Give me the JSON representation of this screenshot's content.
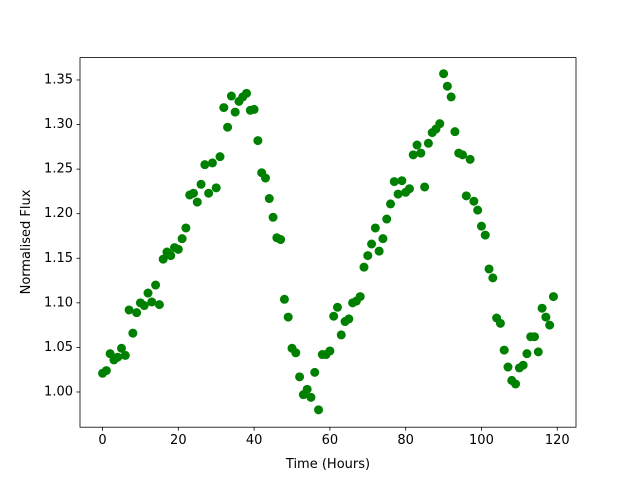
{
  "chart_data": {
    "type": "scatter",
    "xlabel": "Time (Hours)",
    "ylabel": "Normalised Flux",
    "xlim": [
      -5.95,
      124.95
    ],
    "ylim": [
      0.9605,
      1.3751
    ],
    "xticks": [
      0,
      20,
      40,
      60,
      80,
      100,
      120
    ],
    "yticks": [
      {
        "value": 1.0,
        "label": "1.00"
      },
      {
        "value": 1.05,
        "label": "1.05"
      },
      {
        "value": 1.1,
        "label": "1.10"
      },
      {
        "value": 1.15,
        "label": "1.15"
      },
      {
        "value": 1.2,
        "label": "1.20"
      },
      {
        "value": 1.25,
        "label": "1.25"
      },
      {
        "value": 1.3,
        "label": "1.30"
      },
      {
        "value": 1.35,
        "label": "1.35"
      }
    ],
    "grid": false,
    "color": "#008000",
    "x": [
      0,
      1,
      2,
      3,
      4,
      5,
      6,
      7,
      8,
      9,
      10,
      11,
      12,
      13,
      14,
      15,
      16,
      17,
      18,
      19,
      20,
      21,
      22,
      23,
      24,
      25,
      26,
      27,
      28,
      29,
      30,
      31,
      32,
      33,
      34,
      35,
      36,
      37,
      38,
      39,
      40,
      41,
      42,
      43,
      44,
      45,
      46,
      47,
      48,
      49,
      50,
      51,
      52,
      53,
      54,
      55,
      56,
      57,
      58,
      59,
      60,
      61,
      62,
      63,
      64,
      65,
      66,
      67,
      68,
      69,
      70,
      71,
      72,
      73,
      74,
      75,
      76,
      77,
      78,
      79,
      80,
      81,
      82,
      83,
      84,
      85,
      86,
      87,
      88,
      89,
      90,
      91,
      92,
      93,
      94,
      95,
      96,
      97,
      98,
      99,
      100,
      101,
      102,
      103,
      104,
      105,
      106,
      107,
      108,
      109,
      110,
      111,
      112,
      113,
      114,
      115,
      116,
      117,
      118,
      119
    ],
    "values": [
      1.021,
      1.024,
      1.043,
      1.036,
      1.039,
      1.049,
      1.041,
      1.092,
      1.066,
      1.089,
      1.1,
      1.097,
      1.111,
      1.101,
      1.12,
      1.098,
      1.149,
      1.157,
      1.153,
      1.162,
      1.16,
      1.172,
      1.184,
      1.221,
      1.223,
      1.213,
      1.233,
      1.255,
      1.223,
      1.257,
      1.229,
      1.264,
      1.319,
      1.297,
      1.332,
      1.314,
      1.326,
      1.331,
      1.335,
      1.316,
      1.317,
      1.282,
      1.246,
      1.24,
      1.217,
      1.196,
      1.173,
      1.171,
      1.104,
      1.084,
      1.049,
      1.044,
      1.017,
      0.997,
      1.003,
      0.994,
      1.022,
      0.98,
      1.042,
      1.042,
      1.046,
      1.085,
      1.095,
      1.064,
      1.079,
      1.082,
      1.1,
      1.102,
      1.107,
      1.14,
      1.153,
      1.166,
      1.184,
      1.158,
      1.172,
      1.194,
      1.211,
      1.236,
      1.222,
      1.237,
      1.224,
      1.228,
      1.266,
      1.277,
      1.268,
      1.23,
      1.279,
      1.291,
      1.295,
      1.301,
      1.357,
      1.343,
      1.331,
      1.292,
      1.268,
      1.266,
      1.22,
      1.261,
      1.214,
      1.204,
      1.186,
      1.176,
      1.138,
      1.128,
      1.083,
      1.077,
      1.047,
      1.028,
      1.013,
      1.009,
      1.027,
      1.03,
      1.043,
      1.062,
      1.062,
      1.045,
      1.094,
      1.084,
      1.075,
      1.107
    ]
  }
}
